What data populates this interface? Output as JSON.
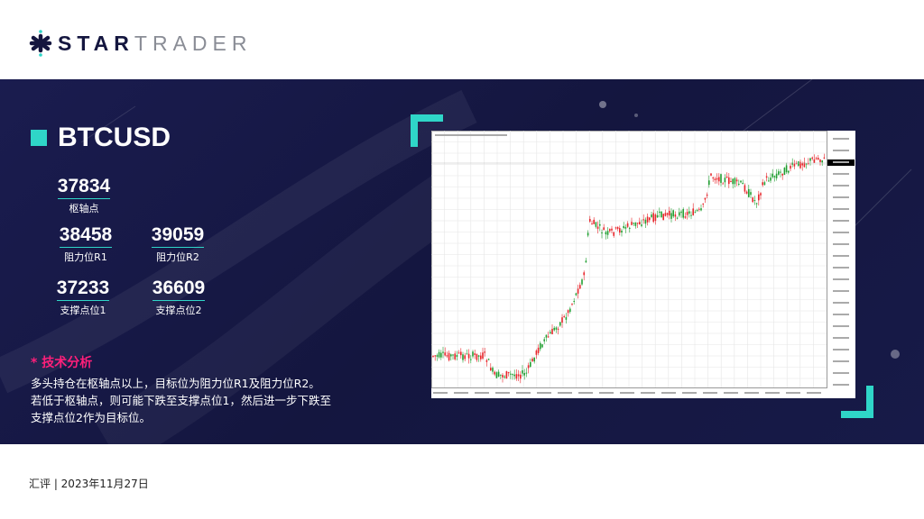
{
  "brand": {
    "bold": "STAR",
    "light": "TRADER"
  },
  "symbol": "BTCUSD",
  "levels": {
    "pivot": {
      "value": "37834",
      "label": "枢轴点"
    },
    "r1": {
      "value": "38458",
      "label": "阻力位R1"
    },
    "r2": {
      "value": "39059",
      "label": "阻力位R2"
    },
    "s1": {
      "value": "37233",
      "label": "支撑点位1"
    },
    "s2": {
      "value": "36609",
      "label": "支撑点位2"
    }
  },
  "analysis": {
    "heading": "* 技术分析",
    "lines": [
      "多头持仓在枢轴点以上，目标位为阻力位R1及阻力位R2。",
      "若低于枢轴点，则可能下跌至支撑点位1，然后进一步下跌至",
      "支撑点位2作为目标位。"
    ]
  },
  "footer": "汇评 | 2023年11月27日",
  "colors": {
    "accent": "#2fd6c8",
    "navy": "#14163f",
    "highlight": "#ff1f7a",
    "bull": "#22a033",
    "bear": "#e8262b"
  }
}
